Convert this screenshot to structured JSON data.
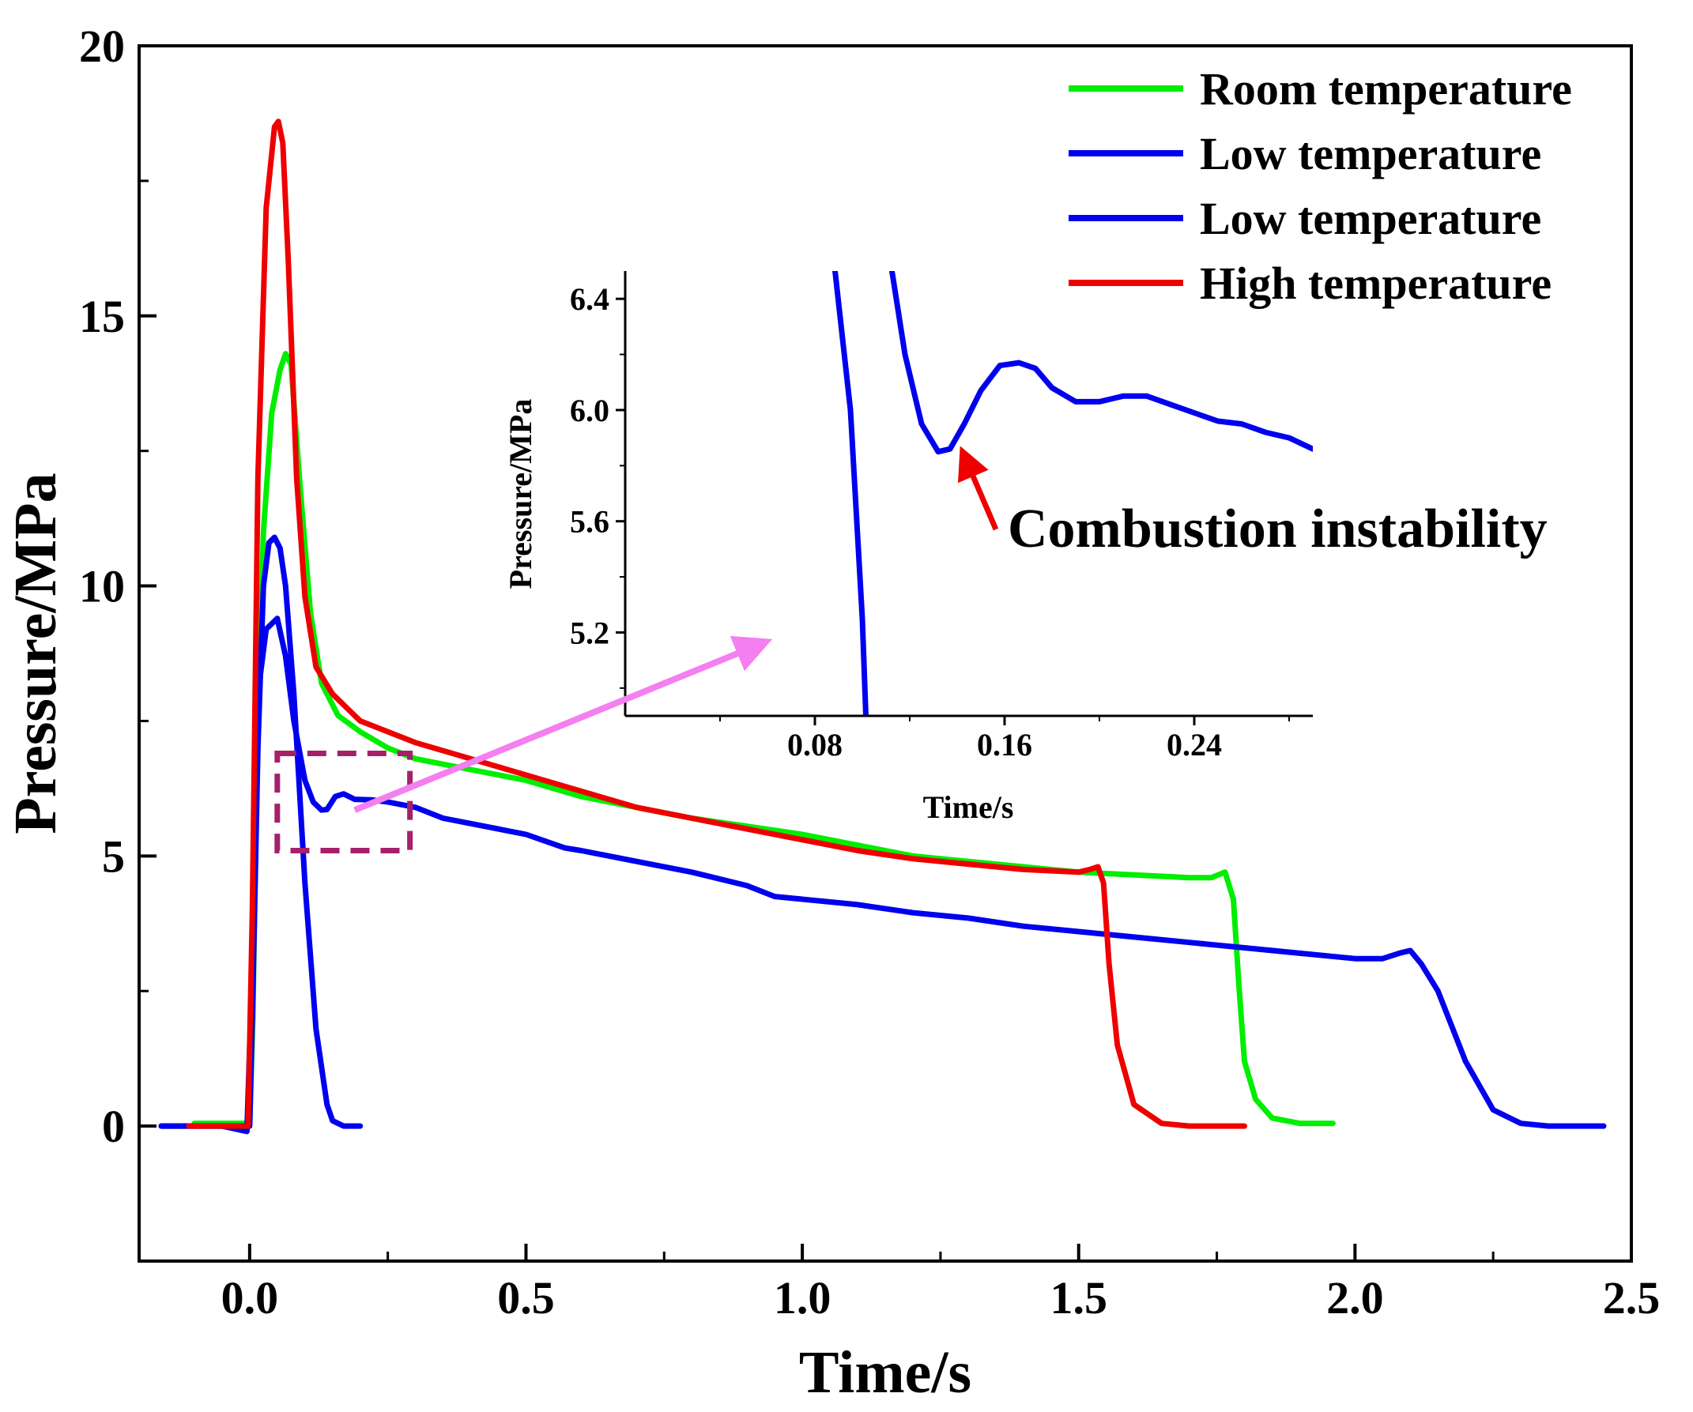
{
  "chart_data": [
    {
      "type": "line",
      "title": "",
      "xlabel": "Time/s",
      "ylabel": "Pressure/MPa",
      "xlim": [
        -0.2,
        2.5
      ],
      "ylim": [
        -2.5,
        20
      ],
      "xticks": [
        "0.0",
        "0.5",
        "1.0",
        "1.5",
        "2.0",
        "2.5"
      ],
      "xtick_values": [
        0,
        0.5,
        1.0,
        1.5,
        2.0,
        2.5
      ],
      "yticks": [
        "0",
        "5",
        "10",
        "15",
        "20"
      ],
      "ytick_values": [
        0,
        5,
        10,
        15,
        20
      ],
      "legend_position": "top-right",
      "grid": false,
      "series": [
        {
          "name": "Room temperature",
          "color": "#00ee00",
          "x": [
            -0.1,
            -0.05,
            0.0,
            0.006,
            0.012,
            0.025,
            0.04,
            0.055,
            0.065,
            0.075,
            0.09,
            0.11,
            0.13,
            0.16,
            0.2,
            0.25,
            0.3,
            0.4,
            0.5,
            0.6,
            0.7,
            0.8,
            0.9,
            1.0,
            1.1,
            1.2,
            1.3,
            1.4,
            1.5,
            1.6,
            1.7,
            1.74,
            1.765,
            1.78,
            1.79,
            1.8,
            1.82,
            1.85,
            1.9,
            1.96
          ],
          "y": [
            0.05,
            0.05,
            0.05,
            2.0,
            6.0,
            11.0,
            13.2,
            14.0,
            14.3,
            14.1,
            12.0,
            9.5,
            8.2,
            7.6,
            7.3,
            7.0,
            6.8,
            6.6,
            6.4,
            6.1,
            5.9,
            5.7,
            5.55,
            5.4,
            5.2,
            5.0,
            4.9,
            4.8,
            4.7,
            4.65,
            4.6,
            4.6,
            4.7,
            4.2,
            2.6,
            1.2,
            0.5,
            0.15,
            0.05,
            0.05
          ]
        },
        {
          "name": "Low temperature",
          "color": "#0000ee",
          "x": [
            -0.16,
            -0.1,
            0.0,
            0.006,
            0.015,
            0.025,
            0.035,
            0.045,
            0.055,
            0.065,
            0.08,
            0.1,
            0.12,
            0.14,
            0.15,
            0.17,
            0.19,
            0.2
          ],
          "y": [
            0.0,
            0.0,
            0.0,
            2.5,
            7.0,
            10.0,
            10.8,
            10.9,
            10.7,
            10.0,
            8.0,
            4.5,
            1.8,
            0.4,
            0.1,
            0.0,
            0.0,
            0.0
          ]
        },
        {
          "name": "Low temperature",
          "color": "#0000ee",
          "x": [
            -0.16,
            -0.05,
            -0.005,
            0.005,
            0.015,
            0.03,
            0.05,
            0.065,
            0.08,
            0.1,
            0.115,
            0.13,
            0.14,
            0.155,
            0.17,
            0.19,
            0.22,
            0.25,
            0.3,
            0.35,
            0.4,
            0.5,
            0.57,
            0.6,
            0.7,
            0.8,
            0.9,
            0.95,
            1.0,
            1.1,
            1.2,
            1.3,
            1.4,
            1.5,
            1.6,
            1.7,
            1.8,
            1.9,
            2.0,
            2.05,
            2.08,
            2.1,
            2.12,
            2.15,
            2.2,
            2.25,
            2.3,
            2.35,
            2.45
          ],
          "y": [
            0.0,
            0.0,
            -0.1,
            3.0,
            8.0,
            9.2,
            9.4,
            8.7,
            7.5,
            6.4,
            6.0,
            5.85,
            5.86,
            6.1,
            6.15,
            6.05,
            6.04,
            6.0,
            5.9,
            5.7,
            5.6,
            5.4,
            5.15,
            5.1,
            4.9,
            4.7,
            4.45,
            4.25,
            4.2,
            4.1,
            3.95,
            3.85,
            3.7,
            3.6,
            3.5,
            3.4,
            3.3,
            3.2,
            3.1,
            3.1,
            3.2,
            3.25,
            3.0,
            2.5,
            1.2,
            0.3,
            0.05,
            0.0,
            0.0
          ]
        },
        {
          "name": "High temperature",
          "color": "#ee0000",
          "x": [
            -0.11,
            -0.05,
            -0.003,
            0.005,
            0.015,
            0.03,
            0.045,
            0.052,
            0.06,
            0.07,
            0.085,
            0.1,
            0.12,
            0.15,
            0.2,
            0.3,
            0.4,
            0.5,
            0.6,
            0.7,
            0.8,
            0.9,
            1.0,
            1.1,
            1.2,
            1.3,
            1.4,
            1.5,
            1.52,
            1.535,
            1.545,
            1.555,
            1.57,
            1.6,
            1.65,
            1.7,
            1.8
          ],
          "y": [
            0.0,
            0.0,
            0.0,
            4.0,
            12.0,
            17.0,
            18.5,
            18.6,
            18.2,
            16.0,
            12.0,
            9.8,
            8.5,
            8.0,
            7.5,
            7.1,
            6.8,
            6.5,
            6.2,
            5.9,
            5.7,
            5.5,
            5.3,
            5.1,
            4.95,
            4.85,
            4.75,
            4.7,
            4.75,
            4.8,
            4.5,
            3.0,
            1.5,
            0.4,
            0.05,
            0.0,
            0.0
          ]
        }
      ],
      "annotations": [
        {
          "type": "dashed-box",
          "color": "#a6206a",
          "x_range": [
            0.05,
            0.29
          ],
          "y_range": [
            5.1,
            6.9
          ]
        },
        {
          "type": "arrow",
          "color": "#f47ff0",
          "from": [
            0.19,
            5.85
          ],
          "to": "inset"
        }
      ]
    },
    {
      "type": "line",
      "role": "inset",
      "xlabel": "Time/s",
      "ylabel": "Pressure/MPa",
      "xlim": [
        0.0,
        0.29
      ],
      "ylim": [
        4.9,
        6.5
      ],
      "xticks": [
        "0.08",
        "0.16",
        "0.24"
      ],
      "xtick_values": [
        0.08,
        0.16,
        0.24
      ],
      "yticks": [
        "5.2",
        "5.6",
        "6.0",
        "6.4"
      ],
      "ytick_values": [
        5.2,
        5.6,
        6.0,
        6.4
      ],
      "series": [
        {
          "name": "Low temperature",
          "color": "#0000ee",
          "x": [
            0.0885,
            0.095,
            0.1,
            0.1015
          ],
          "y": [
            6.5,
            6.0,
            5.25,
            4.9
          ]
        },
        {
          "name": "Low temperature",
          "color": "#0000ee",
          "x": [
            0.1125,
            0.118,
            0.125,
            0.132,
            0.137,
            0.143,
            0.15,
            0.158,
            0.166,
            0.173,
            0.18,
            0.19,
            0.2,
            0.21,
            0.22,
            0.23,
            0.24,
            0.25,
            0.26,
            0.27,
            0.28,
            0.29
          ],
          "y": [
            6.5,
            6.2,
            5.95,
            5.85,
            5.86,
            5.95,
            6.07,
            6.16,
            6.17,
            6.15,
            6.08,
            6.03,
            6.03,
            6.05,
            6.05,
            6.02,
            5.99,
            5.96,
            5.95,
            5.92,
            5.9,
            5.86
          ]
        }
      ],
      "annotation": {
        "text": "Combustion instability",
        "arrow_color": "#ee0000",
        "points_to": [
          0.134,
          5.85
        ]
      }
    }
  ]
}
